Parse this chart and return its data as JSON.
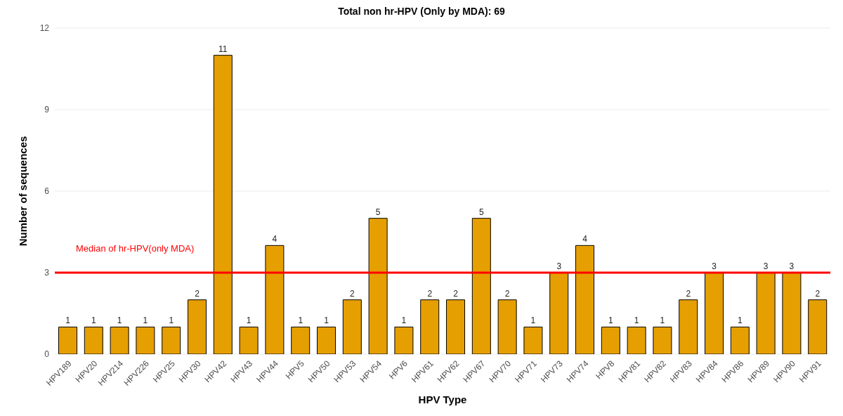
{
  "chart_data": {
    "type": "bar",
    "title": "Total non hr-HPV (Only by MDA): 69",
    "xlabel": "HPV Type",
    "ylabel": "Number of sequences",
    "categories": [
      "HPV189",
      "HPV20",
      "HPV214",
      "HPV226",
      "HPV25",
      "HPV30",
      "HPV42",
      "HPV43",
      "HPV44",
      "HPV5",
      "HPV50",
      "HPV53",
      "HPV54",
      "HPV6",
      "HPV61",
      "HPV62",
      "HPV67",
      "HPV70",
      "HPV71",
      "HPV73",
      "HPV74",
      "HPV8",
      "HPV81",
      "HPV82",
      "HPV83",
      "HPV84",
      "HPV86",
      "HPV89",
      "HPV90",
      "HPV91"
    ],
    "values": [
      1,
      1,
      1,
      1,
      1,
      2,
      11,
      1,
      4,
      1,
      1,
      2,
      5,
      1,
      2,
      2,
      5,
      2,
      1,
      3,
      4,
      1,
      1,
      1,
      2,
      3,
      1,
      3,
      3,
      2
    ],
    "color": "#e69f00",
    "ylim": [
      0,
      12
    ],
    "yticks": [
      0,
      3,
      6,
      9,
      12
    ],
    "grid": "y",
    "data_labels": true,
    "legend": false,
    "ref_lines": [
      {
        "axis": "y",
        "value": 3,
        "label": "Median of hr-HPV(only MDA)",
        "color": "#ff0000",
        "line_style": "solid"
      }
    ]
  }
}
